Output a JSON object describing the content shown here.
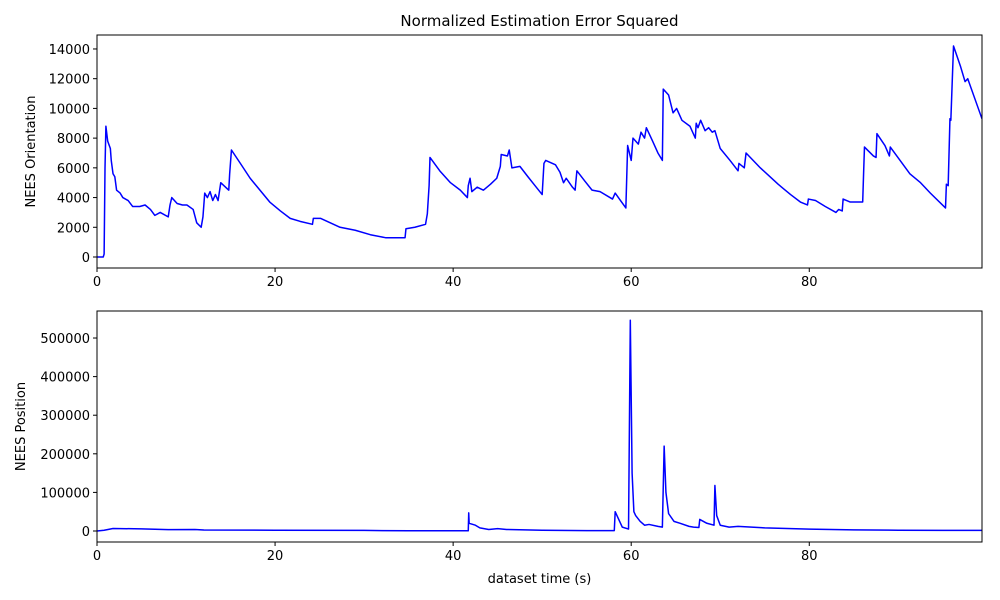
{
  "chart_data": [
    {
      "type": "line",
      "title": "Normalized Estimation Error Squared",
      "ylabel": "NEES Orientation",
      "color": "#0000ff",
      "xlim": [
        0,
        99.4
      ],
      "xticks": [
        0,
        20,
        40,
        60,
        80
      ],
      "ylim": [
        -740,
        14940
      ],
      "yticks": [
        0,
        2000,
        4000,
        6000,
        8000,
        10000,
        12000,
        14000
      ],
      "x": [
        0,
        0.7,
        0.8,
        0.9,
        1.0,
        1.2,
        1.5,
        1.6,
        1.8,
        2.0,
        2.2,
        2.6,
        2.9,
        3.5,
        4.0,
        4.8,
        5.4,
        6.0,
        6.5,
        7.1,
        8.0,
        8.2,
        8.4,
        9.0,
        9.6,
        10.1,
        10.8,
        11.2,
        11.7,
        11.9,
        12.1,
        12.4,
        12.7,
        13.0,
        13.3,
        13.6,
        13.9,
        14.8,
        14.9,
        15.1,
        16.1,
        17.2,
        18.3,
        19.4,
        20.6,
        21.7,
        22.8,
        24.2,
        24.3,
        25.1,
        26.2,
        27.3,
        29.0,
        30.7,
        32.4,
        33.5,
        34.6,
        34.7,
        35.7,
        36.9,
        37.1,
        37.3,
        37.4,
        38.5,
        39.7,
        40.8,
        41.6,
        41.7,
        41.9,
        42.1,
        42.7,
        43.4,
        44.2,
        44.9,
        45.3,
        45.4,
        46.1,
        46.3,
        46.6,
        47.5,
        48.4,
        49.2,
        50.0,
        50.2,
        50.4,
        51.5,
        52.0,
        52.4,
        52.7,
        53.4,
        53.7,
        53.9,
        54.8,
        55.6,
        56.5,
        57.9,
        58.2,
        58.8,
        59.4,
        59.6,
        60.0,
        60.2,
        60.8,
        61.1,
        61.5,
        61.7,
        62.4,
        63.0,
        63.5,
        63.6,
        64.2,
        64.7,
        65.1,
        65.7,
        66.6,
        67.2,
        67.3,
        67.5,
        67.8,
        68.3,
        68.7,
        69.1,
        69.4,
        70.0,
        71.1,
        72.0,
        72.1,
        72.7,
        72.9,
        74.5,
        75.6,
        76.5,
        77.1,
        77.9,
        79.0,
        79.8,
        79.9,
        80.7,
        81.8,
        83.0,
        83.3,
        83.7,
        83.8,
        84.6,
        86.0,
        86.1,
        86.2,
        87.2,
        87.5,
        87.6,
        88.5,
        89.0,
        89.1,
        90.2,
        91.3,
        92.5,
        93.6,
        95.3,
        95.4,
        95.6,
        95.8,
        95.9,
        96.2,
        97.0,
        97.5,
        97.8,
        99.4
      ],
      "values": [
        0,
        0,
        200,
        6000,
        8800,
        7800,
        7300,
        6500,
        5600,
        5400,
        4500,
        4300,
        4000,
        3800,
        3400,
        3400,
        3500,
        3200,
        2800,
        3000,
        2700,
        3500,
        4000,
        3600,
        3500,
        3500,
        3200,
        2300,
        2000,
        2700,
        4300,
        4000,
        4400,
        3800,
        4200,
        3800,
        5000,
        4500,
        5600,
        7200,
        6300,
        5300,
        4500,
        3700,
        3100,
        2600,
        2400,
        2200,
        2600,
        2600,
        2300,
        2000,
        1800,
        1500,
        1300,
        1300,
        1300,
        1900,
        2000,
        2200,
        2900,
        4800,
        6700,
        5800,
        5000,
        4500,
        4000,
        4800,
        5300,
        4400,
        4700,
        4500,
        4900,
        5300,
        6100,
        6900,
        6800,
        7200,
        6000,
        6100,
        5400,
        4800,
        4200,
        6300,
        6500,
        6200,
        5700,
        5000,
        5300,
        4700,
        4500,
        5800,
        5100,
        4500,
        4400,
        3900,
        4300,
        3800,
        3300,
        7500,
        6500,
        8000,
        7600,
        8400,
        8000,
        8700,
        7800,
        7000,
        6500,
        11300,
        10900,
        9700,
        10000,
        9200,
        8800,
        8000,
        9000,
        8700,
        9200,
        8500,
        8700,
        8400,
        8500,
        7300,
        6500,
        5800,
        6300,
        6000,
        7000,
        6000,
        5400,
        4900,
        4600,
        4200,
        3700,
        3500,
        3900,
        3800,
        3400,
        3000,
        3200,
        3100,
        3900,
        3700,
        3700,
        5600,
        7400,
        6800,
        6700,
        8300,
        7500,
        6800,
        7400,
        6500,
        5600,
        5000,
        4300,
        3300,
        4900,
        4800,
        9300,
        9200,
        14200,
        12800,
        11800,
        12000,
        9300
      ]
    },
    {
      "type": "line",
      "ylabel": "NEES Position",
      "xlabel": "dataset time (s)",
      "color": "#0000ff",
      "xlim": [
        0,
        99.4
      ],
      "xticks": [
        0,
        20,
        40,
        60,
        80
      ],
      "ylim": [
        -28500,
        570000
      ],
      "yticks": [
        0,
        100000,
        200000,
        300000,
        400000,
        500000
      ],
      "x": [
        0,
        0.8,
        1.8,
        5,
        8,
        11,
        12,
        20,
        30,
        35,
        41.7,
        41.75,
        41.8,
        42.5,
        43,
        44,
        45,
        46,
        50,
        55,
        58.1,
        58.2,
        58.6,
        59,
        59.7,
        59.9,
        60.1,
        60.3,
        60.5,
        61,
        61.5,
        62,
        63,
        63.5,
        63.7,
        63.9,
        64.2,
        64.8,
        65.5,
        66.5,
        67,
        67.6,
        67.7,
        68.5,
        69.3,
        69.4,
        69.6,
        70,
        71,
        72,
        75,
        80,
        85,
        90,
        95,
        99.4
      ],
      "values": [
        0,
        2000,
        6500,
        5500,
        3500,
        4000,
        2500,
        2000,
        1500,
        500,
        500,
        47000,
        20000,
        15000,
        8000,
        4000,
        6000,
        4000,
        2000,
        1000,
        1000,
        50000,
        30000,
        10000,
        5000,
        546000,
        150000,
        50000,
        40000,
        25000,
        15000,
        17000,
        12000,
        10000,
        220000,
        100000,
        45000,
        25000,
        20000,
        12000,
        10000,
        9000,
        30000,
        20000,
        15000,
        118000,
        40000,
        15000,
        10000,
        12000,
        8000,
        5000,
        3000,
        2000,
        1500,
        1500
      ]
    }
  ]
}
